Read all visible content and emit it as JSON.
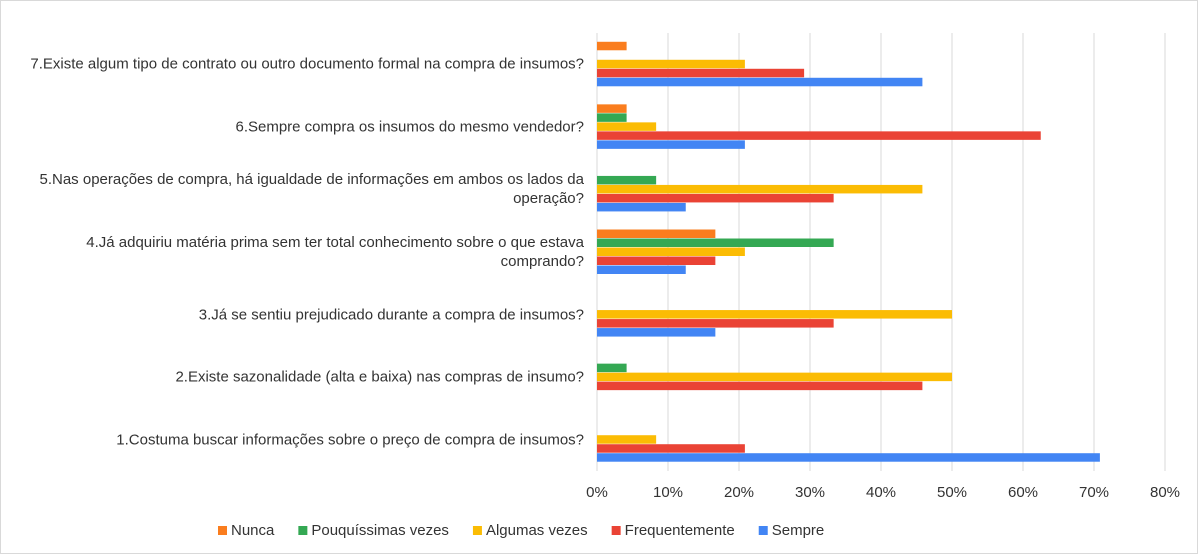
{
  "chart_data": {
    "type": "bar",
    "orientation": "horizontal",
    "categories": [
      "7.Existe algum tipo de contrato ou outro documento formal na compra de insumos?",
      "6.Sempre compra os insumos do mesmo vendedor?",
      "5.Nas operações de compra, há igualdade de informações em ambos os lados da operação?",
      "4.Já adquiriu matéria prima sem ter total conhecimento sobre o que estava comprando?",
      "3.Já se sentiu prejudicado durante a compra de insumos?",
      "2.Existe sazonalidade (alta e baixa) nas compras de insumo?",
      "1.Costuma buscar informações sobre o preço de compra de insumos?"
    ],
    "series": [
      {
        "name": "Nunca",
        "color": "#fa7d1e",
        "values": [
          4.17,
          4.17,
          0,
          16.67,
          0,
          0,
          0
        ]
      },
      {
        "name": "Pouquíssimas vezes",
        "color": "#34a853",
        "values": [
          0,
          4.17,
          8.33,
          33.33,
          0,
          4.17,
          0
        ]
      },
      {
        "name": "Algumas vezes",
        "color": "#fbbc04",
        "values": [
          20.83,
          8.33,
          45.83,
          20.83,
          50,
          50,
          8.33
        ]
      },
      {
        "name": "Frequentemente",
        "color": "#ea4335",
        "values": [
          29.17,
          62.5,
          33.33,
          16.67,
          33.33,
          45.83,
          20.83
        ]
      },
      {
        "name": "Sempre",
        "color": "#4285f4",
        "values": [
          45.83,
          20.83,
          12.5,
          12.5,
          16.67,
          0,
          70.83
        ]
      }
    ],
    "xlim": [
      0,
      80
    ],
    "xticks": [
      {
        "value": 0,
        "label": "0%"
      },
      {
        "value": 10,
        "label": "10%"
      },
      {
        "value": 20,
        "label": "20%"
      },
      {
        "value": 30,
        "label": "30%"
      },
      {
        "value": 40,
        "label": "40%"
      },
      {
        "value": 50,
        "label": "50%"
      },
      {
        "value": 60,
        "label": "60%"
      },
      {
        "value": 70,
        "label": "70%"
      },
      {
        "value": 80,
        "label": "80%"
      }
    ],
    "grid": true,
    "legend": "bottom"
  }
}
